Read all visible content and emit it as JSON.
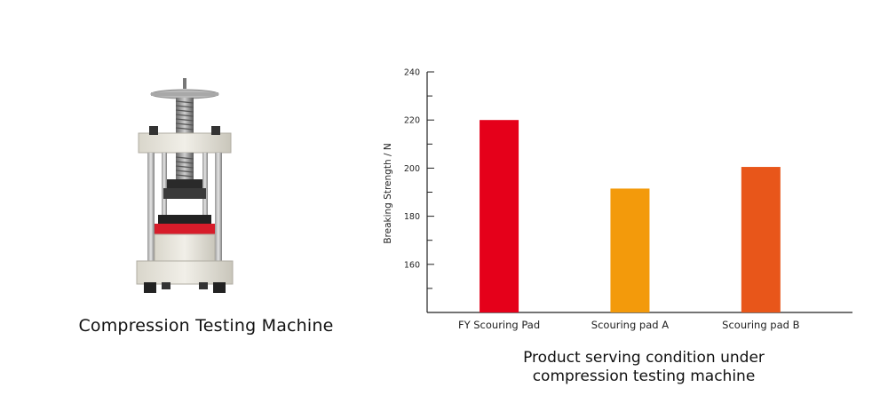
{
  "machine": {
    "caption": "Compression Testing Machine",
    "image_icon": "compression-testing-machine-illustration"
  },
  "chart_caption": {
    "line1": "Product serving condition under",
    "line2": "compression testing machine"
  },
  "colors": {
    "fy": "#e5001a",
    "pad_a": "#f39a0b",
    "pad_b": "#e8561a",
    "axis": "#222222"
  },
  "chart_data": {
    "type": "bar",
    "categories": [
      "FY Scouring Pad",
      "Scouring pad A",
      "Scouring pad B"
    ],
    "values": [
      220,
      191.5,
      200.5
    ],
    "title": "",
    "xlabel": "",
    "ylabel": "Breaking Strength / N",
    "ylim": [
      140,
      240
    ],
    "yticks": [
      160,
      180,
      200,
      220,
      240
    ],
    "grid": false,
    "legend": "none"
  }
}
